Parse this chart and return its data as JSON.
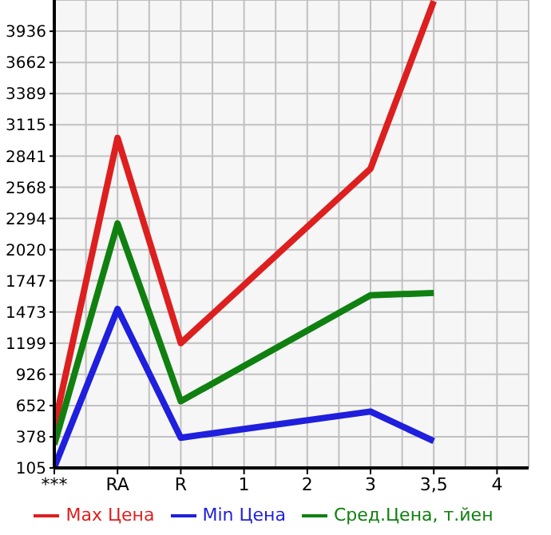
{
  "chart_data": {
    "type": "line",
    "categories": [
      "***",
      "RA",
      "R",
      "1",
      "2",
      "3",
      "3,5",
      "4"
    ],
    "series": [
      {
        "name": "Max Цена",
        "color": "#dd1f1f",
        "values": [
          470,
          3000,
          1200,
          null,
          null,
          2730,
          4200,
          null
        ]
      },
      {
        "name": "Min Цена",
        "color": "#1f1fdd",
        "values": [
          110,
          1500,
          370,
          null,
          null,
          600,
          340,
          null
        ]
      },
      {
        "name": "Сред.Цена, т.йен",
        "color": "#108010",
        "values": [
          310,
          2250,
          690,
          null,
          null,
          1620,
          1640,
          null
        ]
      }
    ],
    "ylim": [
      105,
      4210
    ],
    "yticks": [
      105,
      378,
      652,
      926,
      1199,
      1473,
      1747,
      2020,
      2294,
      2568,
      2841,
      3115,
      3389,
      3662,
      3936
    ],
    "grid": true,
    "legend": "bottom",
    "marker": "none",
    "line_style": "solid"
  }
}
